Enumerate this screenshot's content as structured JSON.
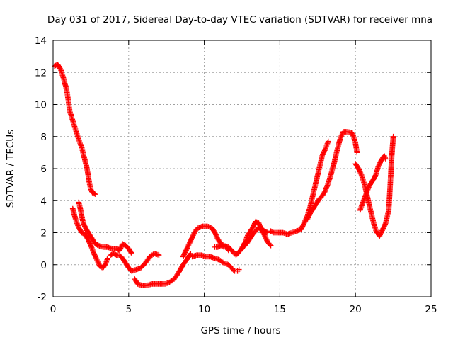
{
  "chart_data": {
    "type": "scatter",
    "title": "Day 031 of 2017, Sidereal Day-to-day VTEC variation (SDTVAR) for receiver mna",
    "xlabel": "GPS time / hours",
    "ylabel": "SDTVAR / TECUs",
    "xlim": [
      0,
      25
    ],
    "ylim": [
      -2,
      14
    ],
    "xticks": [
      0,
      5,
      10,
      15,
      20,
      25
    ],
    "yticks": [
      -2,
      0,
      2,
      4,
      6,
      8,
      10,
      12,
      14
    ],
    "grid": true,
    "marker": "plus",
    "color": "#ff0000",
    "series": [
      {
        "points": [
          [
            0.1,
            12.4
          ],
          [
            0.3,
            12.5
          ],
          [
            0.5,
            12.2
          ],
          [
            0.7,
            11.6
          ],
          [
            0.9,
            10.9
          ],
          [
            1.0,
            10.3
          ],
          [
            1.1,
            9.6
          ],
          [
            1.3,
            9.0
          ],
          [
            1.5,
            8.4
          ],
          [
            1.7,
            7.8
          ],
          [
            1.9,
            7.3
          ],
          [
            2.0,
            6.9
          ],
          [
            2.2,
            6.2
          ],
          [
            2.3,
            5.7
          ],
          [
            2.4,
            5.1
          ],
          [
            2.5,
            4.7
          ],
          [
            2.6,
            4.5
          ],
          [
            2.8,
            4.4
          ]
        ]
      },
      {
        "points": [
          [
            1.3,
            3.5
          ],
          [
            1.5,
            2.8
          ],
          [
            1.7,
            2.3
          ],
          [
            1.9,
            2.0
          ],
          [
            2.1,
            1.9
          ],
          [
            2.3,
            1.6
          ],
          [
            2.5,
            1.2
          ],
          [
            2.7,
            0.7
          ],
          [
            2.9,
            0.3
          ],
          [
            3.1,
            -0.1
          ],
          [
            3.3,
            -0.2
          ],
          [
            3.5,
            0.1
          ],
          [
            3.6,
            0.4
          ]
        ]
      },
      {
        "points": [
          [
            1.7,
            3.9
          ],
          [
            1.8,
            3.5
          ],
          [
            1.9,
            3.0
          ],
          [
            2.0,
            2.6
          ],
          [
            2.2,
            2.2
          ],
          [
            2.4,
            1.9
          ],
          [
            2.6,
            1.6
          ],
          [
            2.8,
            1.3
          ],
          [
            3.0,
            1.2
          ],
          [
            3.3,
            1.1
          ],
          [
            3.6,
            1.1
          ],
          [
            3.9,
            1.0
          ],
          [
            4.2,
            1.0
          ],
          [
            4.4,
            0.9
          ],
          [
            4.6,
            1.3
          ],
          [
            4.8,
            1.2
          ],
          [
            5.0,
            1.0
          ],
          [
            5.2,
            0.7
          ]
        ]
      },
      {
        "points": [
          [
            3.8,
            0.6
          ],
          [
            4.0,
            0.7
          ],
          [
            4.2,
            0.6
          ],
          [
            4.4,
            0.6
          ],
          [
            4.6,
            0.4
          ],
          [
            4.8,
            0.1
          ],
          [
            5.0,
            -0.2
          ],
          [
            5.2,
            -0.4
          ],
          [
            5.5,
            -0.3
          ],
          [
            5.8,
            -0.2
          ],
          [
            6.1,
            0.1
          ],
          [
            6.4,
            0.5
          ],
          [
            6.7,
            0.7
          ],
          [
            7.0,
            0.6
          ]
        ]
      },
      {
        "points": [
          [
            5.4,
            -0.9
          ],
          [
            5.6,
            -1.2
          ],
          [
            5.9,
            -1.3
          ],
          [
            6.2,
            -1.3
          ],
          [
            6.5,
            -1.2
          ],
          [
            6.8,
            -1.2
          ],
          [
            7.1,
            -1.2
          ],
          [
            7.4,
            -1.2
          ],
          [
            7.7,
            -1.1
          ],
          [
            8.0,
            -0.9
          ],
          [
            8.3,
            -0.5
          ],
          [
            8.6,
            0.0
          ],
          [
            8.9,
            0.4
          ],
          [
            9.1,
            0.7
          ]
        ]
      },
      {
        "points": [
          [
            8.6,
            0.5
          ],
          [
            8.8,
            0.9
          ],
          [
            9.0,
            1.3
          ],
          [
            9.2,
            1.7
          ],
          [
            9.4,
            2.1
          ],
          [
            9.6,
            2.3
          ],
          [
            9.9,
            2.4
          ],
          [
            10.2,
            2.4
          ],
          [
            10.5,
            2.3
          ],
          [
            10.7,
            2.0
          ],
          [
            10.9,
            1.6
          ],
          [
            11.1,
            1.3
          ],
          [
            11.3,
            1.2
          ],
          [
            11.6,
            1.1
          ],
          [
            11.9,
            0.8
          ],
          [
            12.1,
            0.6
          ],
          [
            12.4,
            0.9
          ],
          [
            12.7,
            1.4
          ],
          [
            12.9,
            1.9
          ],
          [
            13.2,
            2.3
          ],
          [
            13.4,
            2.7
          ],
          [
            13.6,
            2.6
          ],
          [
            13.8,
            2.2
          ],
          [
            14.0,
            1.8
          ],
          [
            14.2,
            1.4
          ],
          [
            14.4,
            1.2
          ]
        ]
      },
      {
        "points": [
          [
            9.2,
            0.5
          ],
          [
            9.5,
            0.6
          ],
          [
            9.8,
            0.6
          ],
          [
            10.1,
            0.5
          ],
          [
            10.4,
            0.5
          ],
          [
            10.7,
            0.4
          ],
          [
            11.0,
            0.3
          ],
          [
            11.3,
            0.1
          ],
          [
            11.6,
            0.0
          ],
          [
            11.8,
            -0.2
          ],
          [
            12.0,
            -0.4
          ],
          [
            12.2,
            -0.4
          ],
          [
            12.3,
            -0.3
          ]
        ]
      },
      {
        "points": [
          [
            10.7,
            1.1
          ],
          [
            10.9,
            1.1
          ],
          [
            11.1,
            1.2
          ],
          [
            11.3,
            1.1
          ],
          [
            11.5,
            1.1
          ],
          [
            11.6,
            0.9
          ]
        ]
      },
      {
        "points": [
          [
            12.6,
            1.1
          ],
          [
            12.8,
            1.3
          ],
          [
            13.0,
            1.6
          ],
          [
            13.2,
            1.9
          ],
          [
            13.4,
            2.1
          ],
          [
            13.6,
            2.3
          ],
          [
            13.8,
            2.2
          ],
          [
            14.0,
            2.1
          ],
          [
            14.2,
            2.0
          ]
        ]
      },
      {
        "points": [
          [
            14.4,
            2.1
          ],
          [
            14.6,
            2.0
          ],
          [
            14.9,
            2.0
          ],
          [
            15.2,
            2.0
          ],
          [
            15.5,
            1.9
          ],
          [
            15.8,
            2.0
          ],
          [
            16.1,
            2.1
          ],
          [
            16.4,
            2.2
          ],
          [
            16.6,
            2.6
          ],
          [
            16.8,
            3.0
          ],
          [
            17.0,
            3.6
          ],
          [
            17.2,
            4.4
          ],
          [
            17.4,
            5.2
          ],
          [
            17.6,
            6.0
          ],
          [
            17.8,
            6.8
          ],
          [
            18.0,
            7.2
          ],
          [
            18.2,
            7.7
          ]
        ]
      },
      {
        "points": [
          [
            16.8,
            2.8
          ],
          [
            17.0,
            3.2
          ],
          [
            17.2,
            3.5
          ],
          [
            17.4,
            3.8
          ],
          [
            17.6,
            4.1
          ],
          [
            17.8,
            4.3
          ],
          [
            18.0,
            4.6
          ],
          [
            18.2,
            5.1
          ],
          [
            18.4,
            5.7
          ],
          [
            18.6,
            6.4
          ],
          [
            18.8,
            7.2
          ],
          [
            19.0,
            7.9
          ],
          [
            19.2,
            8.3
          ],
          [
            19.5,
            8.3
          ],
          [
            19.8,
            8.2
          ],
          [
            20.0,
            7.6
          ],
          [
            20.1,
            7.0
          ]
        ]
      },
      {
        "points": [
          [
            20.0,
            6.3
          ],
          [
            20.2,
            6.0
          ],
          [
            20.4,
            5.6
          ],
          [
            20.6,
            5.0
          ],
          [
            20.8,
            4.2
          ],
          [
            21.0,
            3.4
          ],
          [
            21.2,
            2.6
          ],
          [
            21.4,
            2.0
          ],
          [
            21.6,
            1.8
          ],
          [
            21.8,
            2.2
          ],
          [
            22.0,
            2.6
          ],
          [
            22.2,
            3.4
          ],
          [
            22.3,
            5.0
          ],
          [
            22.4,
            6.8
          ],
          [
            22.5,
            8.0
          ]
        ]
      },
      {
        "points": [
          [
            20.3,
            3.4
          ],
          [
            20.5,
            3.9
          ],
          [
            20.7,
            4.4
          ],
          [
            20.9,
            4.9
          ],
          [
            21.1,
            5.2
          ],
          [
            21.3,
            5.5
          ],
          [
            21.5,
            6.1
          ],
          [
            21.7,
            6.5
          ],
          [
            21.9,
            6.8
          ],
          [
            22.0,
            6.6
          ]
        ]
      }
    ]
  }
}
